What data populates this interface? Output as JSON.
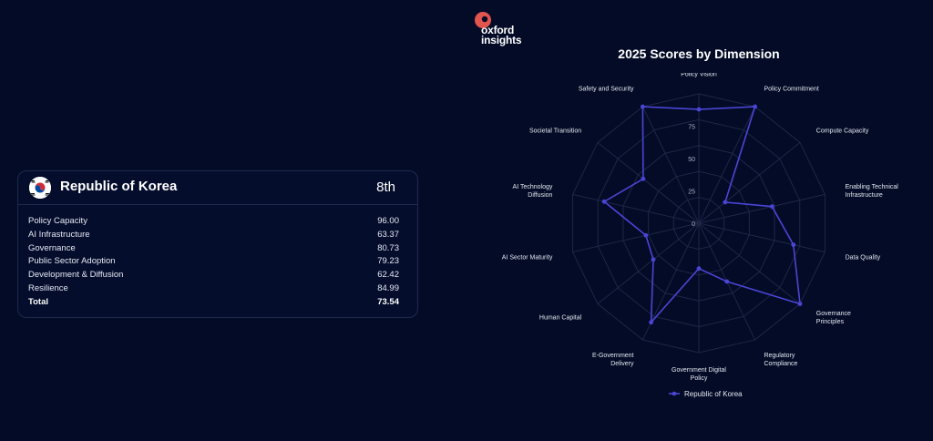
{
  "brand": {
    "line1": "oxford",
    "line2": "insights",
    "color": "#e0554d"
  },
  "profile": {
    "country": "Republic of Korea",
    "rank": "8th",
    "pillars": [
      {
        "label": "Policy Capacity",
        "value": "96.00"
      },
      {
        "label": "AI Infrastructure",
        "value": "63.37"
      },
      {
        "label": "Governance",
        "value": "80.73"
      },
      {
        "label": "Public Sector Adoption",
        "value": "79.23"
      },
      {
        "label": "Development & Diffusion",
        "value": "62.42"
      },
      {
        "label": "Resilience",
        "value": "84.99"
      }
    ],
    "total": {
      "label": "Total",
      "value": "73.54"
    }
  },
  "chart_data": {
    "type": "radar",
    "title": "2025 Scores by Dimension",
    "axes": [
      "Policy Vision",
      "Policy Commitment",
      "Compute Capacity",
      "Enabling Technical Infrastructure",
      "Data Quality",
      "Governance Principles",
      "Regulatory Compliance",
      "Government Digital Policy",
      "E-Government Delivery",
      "Human Capital",
      "AI Sector Maturity",
      "AI Technology Diffusion",
      "Societal Transition",
      "Safety and Security"
    ],
    "range": [
      0,
      100
    ],
    "ticks": [
      "0",
      "25",
      "50",
      "75"
    ],
    "series": [
      {
        "name": "Republic of Korea",
        "color": "#4b45d6",
        "values": [
          88,
          100,
          26,
          58,
          75,
          100,
          50,
          35,
          85,
          45,
          42,
          75,
          55,
          100
        ]
      }
    ],
    "legend_position": "bottom"
  }
}
